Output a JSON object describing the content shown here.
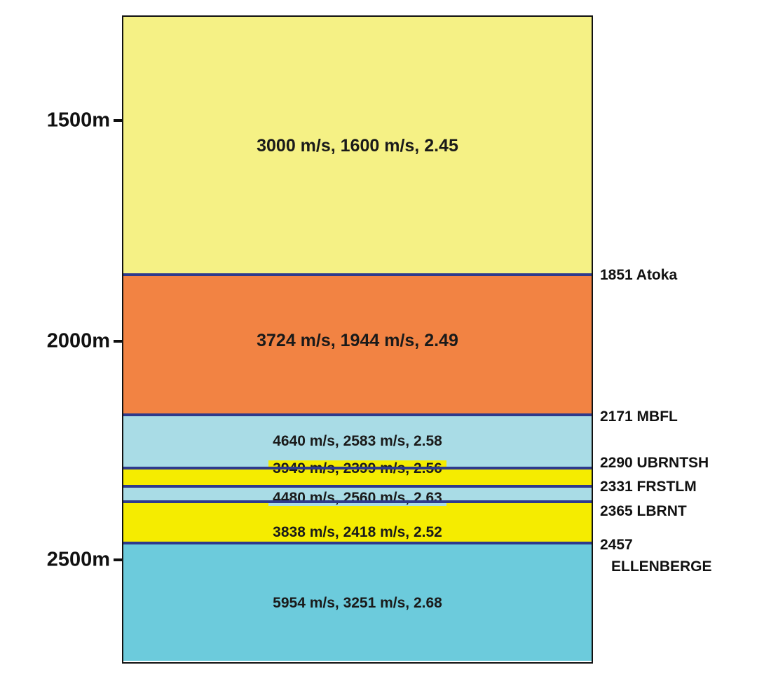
{
  "depth_axis": {
    "ticks": [
      {
        "label": "1500m",
        "depth": 1500
      },
      {
        "label": "2000m",
        "depth": 2000
      },
      {
        "label": "2500m",
        "depth": 2500
      }
    ]
  },
  "layers": [
    {
      "label": "3000 m/s,  1600 m/s,  2.45",
      "vp": 3000,
      "vs": 1600,
      "density": 2.45,
      "color": "#f5f185"
    },
    {
      "label": "3724 m/s,  1944 m/s,  2.49",
      "vp": 3724,
      "vs": 1944,
      "density": 2.49,
      "color": "#f28343"
    },
    {
      "label": "4640 m/s,  2583 m/s,  2.58",
      "vp": 4640,
      "vs": 2583,
      "density": 2.58,
      "color": "#a9dce6"
    },
    {
      "label": "3949 m/s,  2399 m/s,  2.56",
      "vp": 3949,
      "vs": 2399,
      "density": 2.56,
      "color": "#f5ec00"
    },
    {
      "label": "4480 m/s,  2560 m/s,  2.63",
      "vp": 4480,
      "vs": 2560,
      "density": 2.63,
      "color": "#a9dce6"
    },
    {
      "label": "3838 m/s,  2418 m/s,  2.52",
      "vp": 3838,
      "vs": 2418,
      "density": 2.52,
      "color": "#f5ec00"
    },
    {
      "label": "5954 m/s,  3251 m/s,  2.68",
      "vp": 5954,
      "vs": 3251,
      "density": 2.68,
      "color": "#6ccbdc"
    }
  ],
  "horizons": [
    {
      "depth": 1851,
      "label": "1851 Atoka"
    },
    {
      "depth": 2171,
      "label": "2171 MBFL"
    },
    {
      "depth": 2290,
      "label": "2290 UBRNTSH"
    },
    {
      "depth": 2331,
      "label": "2331 FRSTLM"
    },
    {
      "depth": 2365,
      "label": "2365 LBRNT"
    },
    {
      "depth": 2457,
      "label_line1": "2457",
      "label_line2": "ELLENBERGE"
    }
  ],
  "colors": {
    "boundary": "#2e3a8c",
    "frame": "#111111"
  }
}
